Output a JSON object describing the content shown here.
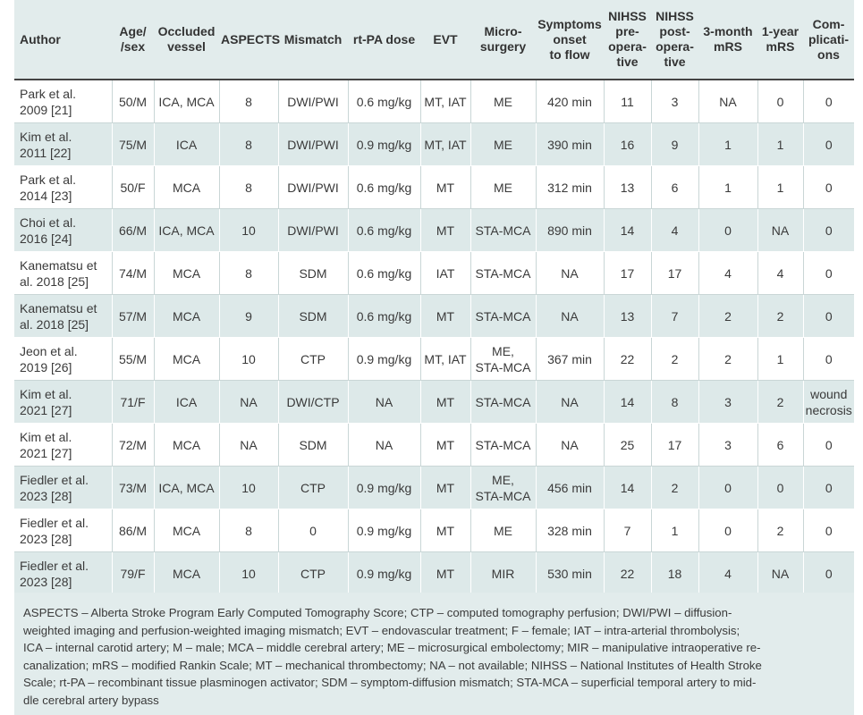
{
  "headers": [
    "Author",
    "Age/\n/sex",
    "Occluded\nvessel",
    "ASPECTS",
    "Mismatch",
    "rt-PA dose",
    "EVT",
    "Micro-\nsurgery",
    "Symptoms\nonset\nto flow",
    "NIHSS\npre-\nopera-\ntive",
    "NIHSS\npost-\nopera-\ntive",
    "3-month\nmRS",
    "1-year\nmRS",
    "Com-\nplicati-\nons"
  ],
  "rows": [
    [
      "Park et al.\n2009 [21]",
      "50/M",
      "ICA, MCA",
      "8",
      "DWI/PWI",
      "0.6 mg/kg",
      "MT, IAT",
      "ME",
      "420 min",
      "11",
      "3",
      "NA",
      "0",
      "0"
    ],
    [
      "Kim et al.\n2011 [22]",
      "75/M",
      "ICA",
      "8",
      "DWI/PWI",
      "0.9 mg/kg",
      "MT, IAT",
      "ME",
      "390 min",
      "16",
      "9",
      "1",
      "1",
      "0"
    ],
    [
      "Park et al.\n2014 [23]",
      "50/F",
      "MCA",
      "8",
      "DWI/PWI",
      "0.6 mg/kg",
      "MT",
      "ME",
      "312 min",
      "13",
      "6",
      "1",
      "1",
      "0"
    ],
    [
      "Choi et al.\n2016 [24]",
      "66/M",
      "ICA, MCA",
      "10",
      "DWI/PWI",
      "0.6 mg/kg",
      "MT",
      "STA-MCA",
      "890 min",
      "14",
      "4",
      "0",
      "NA",
      "0"
    ],
    [
      "Kanematsu et\nal. 2018 [25]",
      "74/M",
      "MCA",
      "8",
      "SDM",
      "0.6 mg/kg",
      "IAT",
      "STA-MCA",
      "NA",
      "17",
      "17",
      "4",
      "4",
      "0"
    ],
    [
      "Kanematsu et\nal. 2018 [25]",
      "57/M",
      "MCA",
      "9",
      "SDM",
      "0.6 mg/kg",
      "MT",
      "STA-MCA",
      "NA",
      "13",
      "7",
      "2",
      "2",
      "0"
    ],
    [
      "Jeon et al.\n2019 [26]",
      "55/M",
      "MCA",
      "10",
      "CTP",
      "0.9 mg/kg",
      "MT, IAT",
      "ME,\nSTA-MCA",
      "367 min",
      "22",
      "2",
      "2",
      "1",
      "0"
    ],
    [
      "Kim et al.\n2021 [27]",
      "71/F",
      "ICA",
      "NA",
      "DWI/CTP",
      "NA",
      "MT",
      "STA-MCA",
      "NA",
      "14",
      "8",
      "3",
      "2",
      "wound\nnecrosis"
    ],
    [
      "Kim et al.\n2021 [27]",
      "72/M",
      "MCA",
      "NA",
      "SDM",
      "NA",
      "MT",
      "STA-MCA",
      "NA",
      "25",
      "17",
      "3",
      "6",
      "0"
    ],
    [
      "Fiedler et al.\n2023 [28]",
      "73/M",
      "ICA, MCA",
      "10",
      "CTP",
      "0.9 mg/kg",
      "MT",
      "ME,\nSTA-MCA",
      "456 min",
      "14",
      "2",
      "0",
      "0",
      "0"
    ],
    [
      "Fiedler et al.\n2023 [28]",
      "86/M",
      "MCA",
      "8",
      "0",
      "0.9 mg/kg",
      "MT",
      "ME",
      "328 min",
      "7",
      "1",
      "0",
      "2",
      "0"
    ],
    [
      "Fiedler et al.\n2023 [28]",
      "79/F",
      "MCA",
      "10",
      "CTP",
      "0.9 mg/kg",
      "MT",
      "MIR",
      "530 min",
      "22",
      "18",
      "4",
      "NA",
      "0"
    ]
  ],
  "footnote": "ASPECTS – Alberta Stroke Program Early Computed Tomography Score; CTP – computed tomography perfusion; DWI/PWI – diffusion-\nweighted imaging and perfusion-weighted imaging mismatch; EVT – endovascular treatment; F – female; IAT – intra-arterial thrombolysis;\nICA – internal carotid artery; M – male; MCA – middle cerebral artery; ME – microsurgical embolectomy; MIR – manipulative intraoperative re-\ncanalization; mRS – modified Rankin Scale; MT – mechanical thrombectomy; NA – not available; NIHSS – National Institutes of Health Stroke\nScale; rt-PA – recombinant tissue plasminogen activator; SDM – symptom-diffusion mismatch; STA-MCA – superficial temporal artery to mid-\ndle cerebral artery bypass",
  "colors": {
    "header_bg": "#e2ecec",
    "stripe_bg": "#dde9e9",
    "rule": "#444444"
  }
}
